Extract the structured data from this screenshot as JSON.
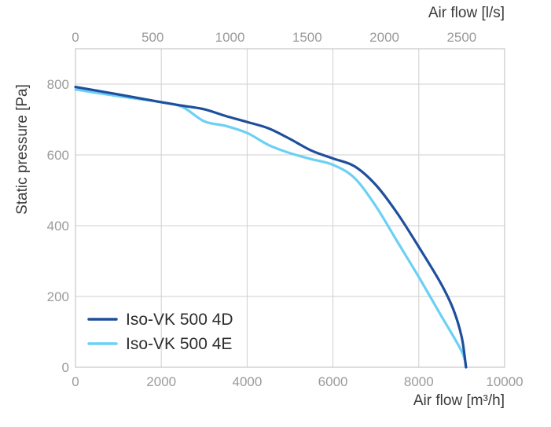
{
  "chart_data": {
    "type": "line",
    "xlabel": "Air flow [m³/h]",
    "x2label": "Air flow [l/s]",
    "ylabel": "Static pressure [Pa]",
    "xlim": [
      0,
      10000
    ],
    "x2lim": [
      0,
      2778
    ],
    "ylim": [
      0,
      900
    ],
    "xticks": [
      0,
      2000,
      4000,
      6000,
      8000,
      10000
    ],
    "x2ticks": [
      0,
      500,
      1000,
      1500,
      2000,
      2500
    ],
    "yticks": [
      0,
      200,
      400,
      600,
      800
    ],
    "grid": true,
    "legend_position": "bottom-left",
    "series": [
      {
        "name": "Iso-VK 500 4D",
        "color": "#1f4f9c",
        "x": [
          0,
          1000,
          2000,
          2500,
          3000,
          3500,
          4000,
          4500,
          5000,
          5500,
          6000,
          6500,
          7000,
          7500,
          8000,
          8500,
          8800,
          9000,
          9100
        ],
        "y": [
          792,
          771,
          749,
          739,
          729,
          710,
          693,
          675,
          645,
          612,
          590,
          568,
          515,
          435,
          340,
          240,
          165,
          85,
          0
        ]
      },
      {
        "name": "Iso-VK 500 4E",
        "color": "#6cd0f5",
        "x": [
          0,
          1000,
          2000,
          2500,
          3000,
          3500,
          4000,
          4500,
          5000,
          5500,
          6000,
          6500,
          7000,
          7500,
          8000,
          8500,
          9000,
          9100
        ],
        "y": [
          785,
          766,
          749,
          735,
          695,
          682,
          662,
          628,
          605,
          588,
          572,
          535,
          455,
          355,
          255,
          150,
          45,
          0
        ]
      }
    ]
  }
}
